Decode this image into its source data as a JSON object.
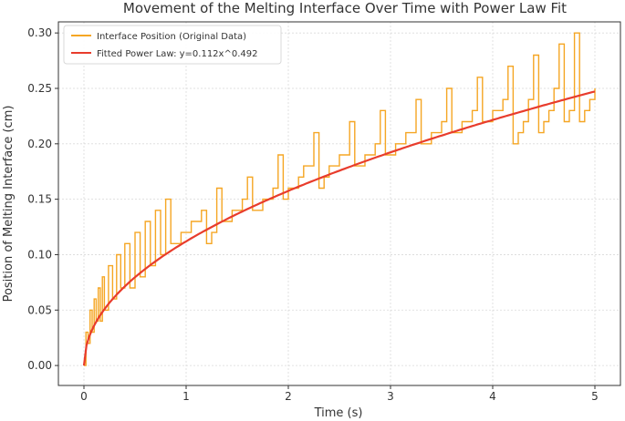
{
  "chart_data": {
    "type": "line",
    "title": "Movement of the Melting Interface Over Time with Power Law Fit",
    "xlabel": "Time (s)",
    "ylabel": "Position of Melting Interface (cm)",
    "xlim": [
      -0.25,
      5.25
    ],
    "ylim": [
      -0.018,
      0.31
    ],
    "x_ticks": [
      0,
      1,
      2,
      3,
      4,
      5
    ],
    "x_tick_labels": [
      "0",
      "1",
      "2",
      "3",
      "4",
      "5"
    ],
    "y_ticks": [
      0.0,
      0.05,
      0.1,
      0.15,
      0.2,
      0.25,
      0.3
    ],
    "y_tick_labels": [
      "0.00",
      "0.05",
      "0.10",
      "0.15",
      "0.20",
      "0.25",
      "0.30"
    ],
    "grid": true,
    "legend_position": "top-left",
    "series": [
      {
        "name": "Interface Position (Original Data)",
        "color": "#f5a623",
        "line_shape": "step",
        "x": [
          0.0,
          0.02,
          0.04,
          0.06,
          0.08,
          0.1,
          0.12,
          0.14,
          0.16,
          0.18,
          0.2,
          0.24,
          0.28,
          0.32,
          0.36,
          0.4,
          0.45,
          0.5,
          0.55,
          0.6,
          0.65,
          0.7,
          0.75,
          0.8,
          0.85,
          0.9,
          0.95,
          1.0,
          1.05,
          1.1,
          1.15,
          1.2,
          1.25,
          1.3,
          1.35,
          1.4,
          1.45,
          1.5,
          1.55,
          1.6,
          1.65,
          1.7,
          1.75,
          1.8,
          1.85,
          1.9,
          1.95,
          2.0,
          2.05,
          2.1,
          2.15,
          2.2,
          2.25,
          2.3,
          2.35,
          2.4,
          2.45,
          2.5,
          2.55,
          2.6,
          2.65,
          2.7,
          2.75,
          2.8,
          2.85,
          2.9,
          2.95,
          3.0,
          3.05,
          3.1,
          3.15,
          3.2,
          3.25,
          3.3,
          3.35,
          3.4,
          3.45,
          3.5,
          3.55,
          3.6,
          3.65,
          3.7,
          3.75,
          3.8,
          3.85,
          3.9,
          3.95,
          4.0,
          4.05,
          4.1,
          4.15,
          4.2,
          4.25,
          4.3,
          4.35,
          4.4,
          4.45,
          4.5,
          4.55,
          4.6,
          4.65,
          4.7,
          4.75,
          4.8,
          4.85,
          4.9,
          4.95,
          5.0
        ],
        "y": [
          0.0,
          0.03,
          0.02,
          0.05,
          0.03,
          0.06,
          0.04,
          0.07,
          0.04,
          0.08,
          0.05,
          0.09,
          0.06,
          0.1,
          0.07,
          0.11,
          0.07,
          0.12,
          0.08,
          0.13,
          0.09,
          0.14,
          0.1,
          0.15,
          0.11,
          0.11,
          0.12,
          0.12,
          0.13,
          0.13,
          0.14,
          0.11,
          0.12,
          0.16,
          0.13,
          0.13,
          0.14,
          0.14,
          0.15,
          0.17,
          0.14,
          0.14,
          0.15,
          0.15,
          0.16,
          0.19,
          0.15,
          0.16,
          0.16,
          0.17,
          0.18,
          0.18,
          0.21,
          0.16,
          0.17,
          0.18,
          0.18,
          0.19,
          0.19,
          0.22,
          0.18,
          0.18,
          0.19,
          0.19,
          0.2,
          0.23,
          0.19,
          0.19,
          0.2,
          0.2,
          0.21,
          0.21,
          0.24,
          0.2,
          0.2,
          0.21,
          0.21,
          0.22,
          0.25,
          0.21,
          0.21,
          0.22,
          0.22,
          0.23,
          0.26,
          0.22,
          0.22,
          0.23,
          0.23,
          0.24,
          0.27,
          0.2,
          0.21,
          0.22,
          0.24,
          0.28,
          0.21,
          0.22,
          0.23,
          0.25,
          0.29,
          0.22,
          0.23,
          0.3,
          0.22,
          0.23,
          0.24,
          0.25
        ]
      },
      {
        "name": "Fitted Power Law: y=0.112x^0.492",
        "color": "#e83c2c",
        "function": "power",
        "coefficient": 0.112,
        "exponent": 0.492,
        "x_range": [
          0,
          5
        ]
      }
    ]
  }
}
